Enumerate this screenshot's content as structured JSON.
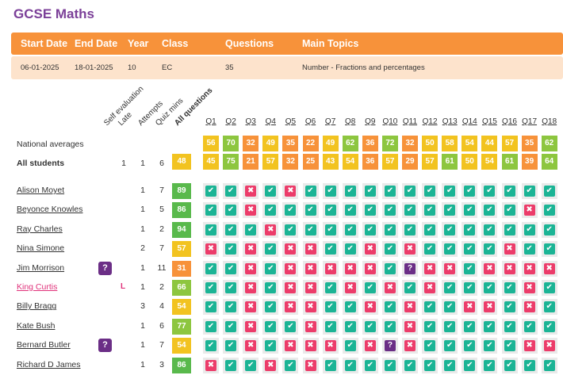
{
  "title": "GCSE Maths",
  "meta": {
    "headers": [
      "Start Date",
      "End Date",
      "Year",
      "Class",
      "Questions",
      "Main Topics"
    ],
    "values": [
      "06-01-2025",
      "18-01-2025",
      "10",
      "EC",
      "35",
      "Number - Fractions and percentages"
    ]
  },
  "column_headers": [
    "Self evaluation",
    "Late",
    "Attempts",
    "Quiz mins",
    "All questions"
  ],
  "questions": [
    "Q1",
    "Q2",
    "Q3",
    "Q4",
    "Q5",
    "Q6",
    "Q7",
    "Q8",
    "Q9",
    "Q10",
    "Q11",
    "Q12",
    "Q13",
    "Q14",
    "Q15",
    "Q16",
    "Q17",
    "Q18"
  ],
  "national": {
    "label": "National averages",
    "values": [
      "56",
      "70",
      "32",
      "49",
      "35",
      "22",
      "49",
      "62",
      "36",
      "72",
      "32",
      "50",
      "58",
      "54",
      "44",
      "57",
      "35",
      "62"
    ]
  },
  "all_students": {
    "label": "All students",
    "late": "1",
    "attempts": "1",
    "quiz_mins": "6",
    "score": "48",
    "values": [
      "45",
      "75",
      "21",
      "57",
      "32",
      "25",
      "43",
      "54",
      "36",
      "57",
      "29",
      "57",
      "61",
      "50",
      "54",
      "61",
      "39",
      "64"
    ]
  },
  "students": [
    {
      "name": "Alison Moyet",
      "self_eval": "",
      "late": "",
      "attempts": "1",
      "quiz_mins": "7",
      "score": "89",
      "answers": [
        "c",
        "c",
        "x",
        "c",
        "x",
        "c",
        "c",
        "c",
        "c",
        "c",
        "c",
        "c",
        "c",
        "c",
        "c",
        "c",
        "c",
        "c"
      ]
    },
    {
      "name": "Beyonce Knowles",
      "self_eval": "",
      "late": "",
      "attempts": "1",
      "quiz_mins": "5",
      "score": "86",
      "answers": [
        "c",
        "c",
        "x",
        "c",
        "c",
        "c",
        "c",
        "c",
        "c",
        "c",
        "c",
        "c",
        "c",
        "c",
        "c",
        "c",
        "x",
        "c"
      ]
    },
    {
      "name": "Ray Charles",
      "self_eval": "",
      "late": "",
      "attempts": "1",
      "quiz_mins": "2",
      "score": "94",
      "answers": [
        "c",
        "c",
        "c",
        "x",
        "c",
        "c",
        "c",
        "c",
        "c",
        "c",
        "c",
        "c",
        "c",
        "c",
        "c",
        "c",
        "c",
        "c"
      ]
    },
    {
      "name": "Nina Simone",
      "self_eval": "",
      "late": "",
      "attempts": "2",
      "quiz_mins": "7",
      "score": "57",
      "answers": [
        "x",
        "c",
        "x",
        "c",
        "x",
        "x",
        "c",
        "c",
        "x",
        "c",
        "x",
        "c",
        "c",
        "c",
        "c",
        "x",
        "c",
        "c"
      ]
    },
    {
      "name": "Jim Morrison",
      "self_eval": "?",
      "late": "",
      "attempts": "1",
      "quiz_mins": "11",
      "score": "31",
      "answers": [
        "c",
        "c",
        "x",
        "c",
        "x",
        "x",
        "x",
        "x",
        "x",
        "c",
        "?",
        "x",
        "x",
        "c",
        "x",
        "x",
        "x",
        "x"
      ]
    },
    {
      "name": "King Curtis",
      "self_eval": "",
      "late": "L",
      "attempts": "1",
      "quiz_mins": "2",
      "score": "66",
      "answers": [
        "c",
        "c",
        "x",
        "c",
        "x",
        "x",
        "c",
        "x",
        "c",
        "x",
        "c",
        "x",
        "c",
        "c",
        "c",
        "c",
        "x",
        "c"
      ]
    },
    {
      "name": "Billy Bragg",
      "self_eval": "",
      "late": "",
      "attempts": "3",
      "quiz_mins": "4",
      "score": "54",
      "answers": [
        "c",
        "c",
        "x",
        "c",
        "x",
        "x",
        "c",
        "c",
        "x",
        "c",
        "x",
        "c",
        "c",
        "x",
        "x",
        "c",
        "x",
        "c"
      ]
    },
    {
      "name": "Kate Bush",
      "self_eval": "",
      "late": "",
      "attempts": "1",
      "quiz_mins": "6",
      "score": "77",
      "answers": [
        "c",
        "c",
        "x",
        "c",
        "c",
        "x",
        "c",
        "c",
        "c",
        "c",
        "x",
        "c",
        "c",
        "c",
        "c",
        "c",
        "c",
        "c"
      ]
    },
    {
      "name": "Bernard Butler",
      "self_eval": "?",
      "late": "",
      "attempts": "1",
      "quiz_mins": "7",
      "score": "54",
      "answers": [
        "c",
        "c",
        "x",
        "c",
        "x",
        "x",
        "x",
        "c",
        "x",
        "?",
        "x",
        "c",
        "c",
        "c",
        "c",
        "c",
        "x",
        "x"
      ]
    },
    {
      "name": "Richard D James",
      "self_eval": "",
      "late": "",
      "attempts": "1",
      "quiz_mins": "3",
      "score": "86",
      "answers": [
        "x",
        "c",
        "c",
        "x",
        "c",
        "x",
        "c",
        "c",
        "c",
        "c",
        "c",
        "c",
        "c",
        "c",
        "c",
        "c",
        "c",
        "c"
      ]
    }
  ],
  "highlighted_student": "King Curtis",
  "colors": {
    "brand_purple": "#7b3f98",
    "header_orange": "#f7923a",
    "header_row_bg": "#fde3cc",
    "correct": "#1bb495",
    "incorrect": "#ec3c6a",
    "unknown": "#6b2e86",
    "score_low": "#f7923a",
    "score_mid": "#f2c320",
    "score_high": "#8dc63f",
    "score_top": "#59b94c"
  },
  "icons": {
    "correct": "check-icon",
    "incorrect": "cross-icon",
    "unknown": "question-icon"
  }
}
